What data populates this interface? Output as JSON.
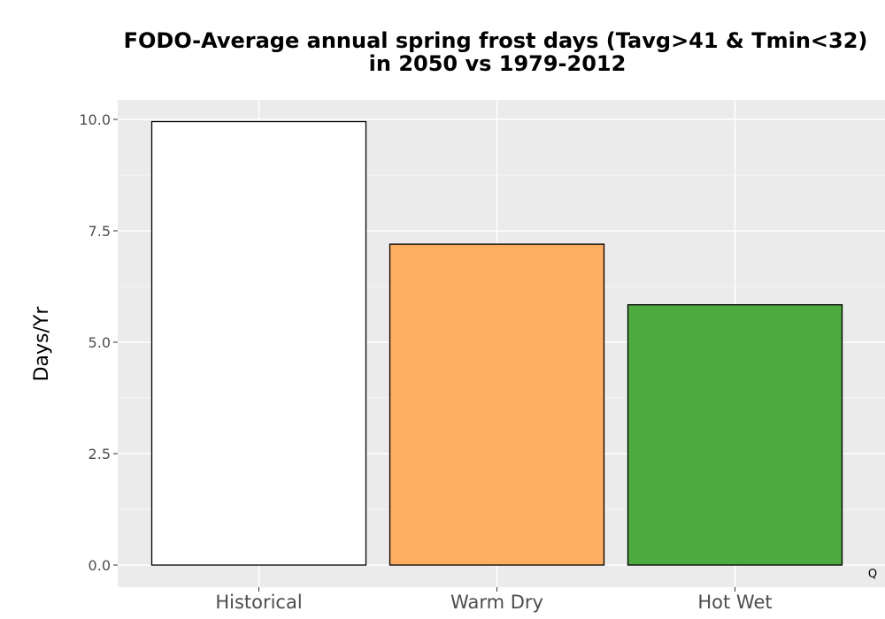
{
  "chart_data": {
    "type": "bar",
    "title": "FODO-Average annual spring frost days (Tavg>41 & Tmin<32)",
    "subtitle": "in 2050 vs 1979-2012",
    "xlabel": "",
    "ylabel": "Days/Yr",
    "categories": [
      "Historical",
      "Warm Dry",
      "Hot Wet"
    ],
    "values": [
      9.95,
      7.2,
      5.84
    ],
    "colors": [
      "#ffffff",
      "#fdae61",
      "#4daa3e"
    ],
    "ylim": [
      0,
      10
    ],
    "yticks": [
      0,
      2.5,
      5,
      7.5,
      10
    ],
    "ytick_labels": [
      "0.0",
      "2.5",
      "5.0",
      "7.5",
      "10.0"
    ],
    "grid": true,
    "panel_background": "#ebebeb",
    "corner_label": "Q"
  }
}
